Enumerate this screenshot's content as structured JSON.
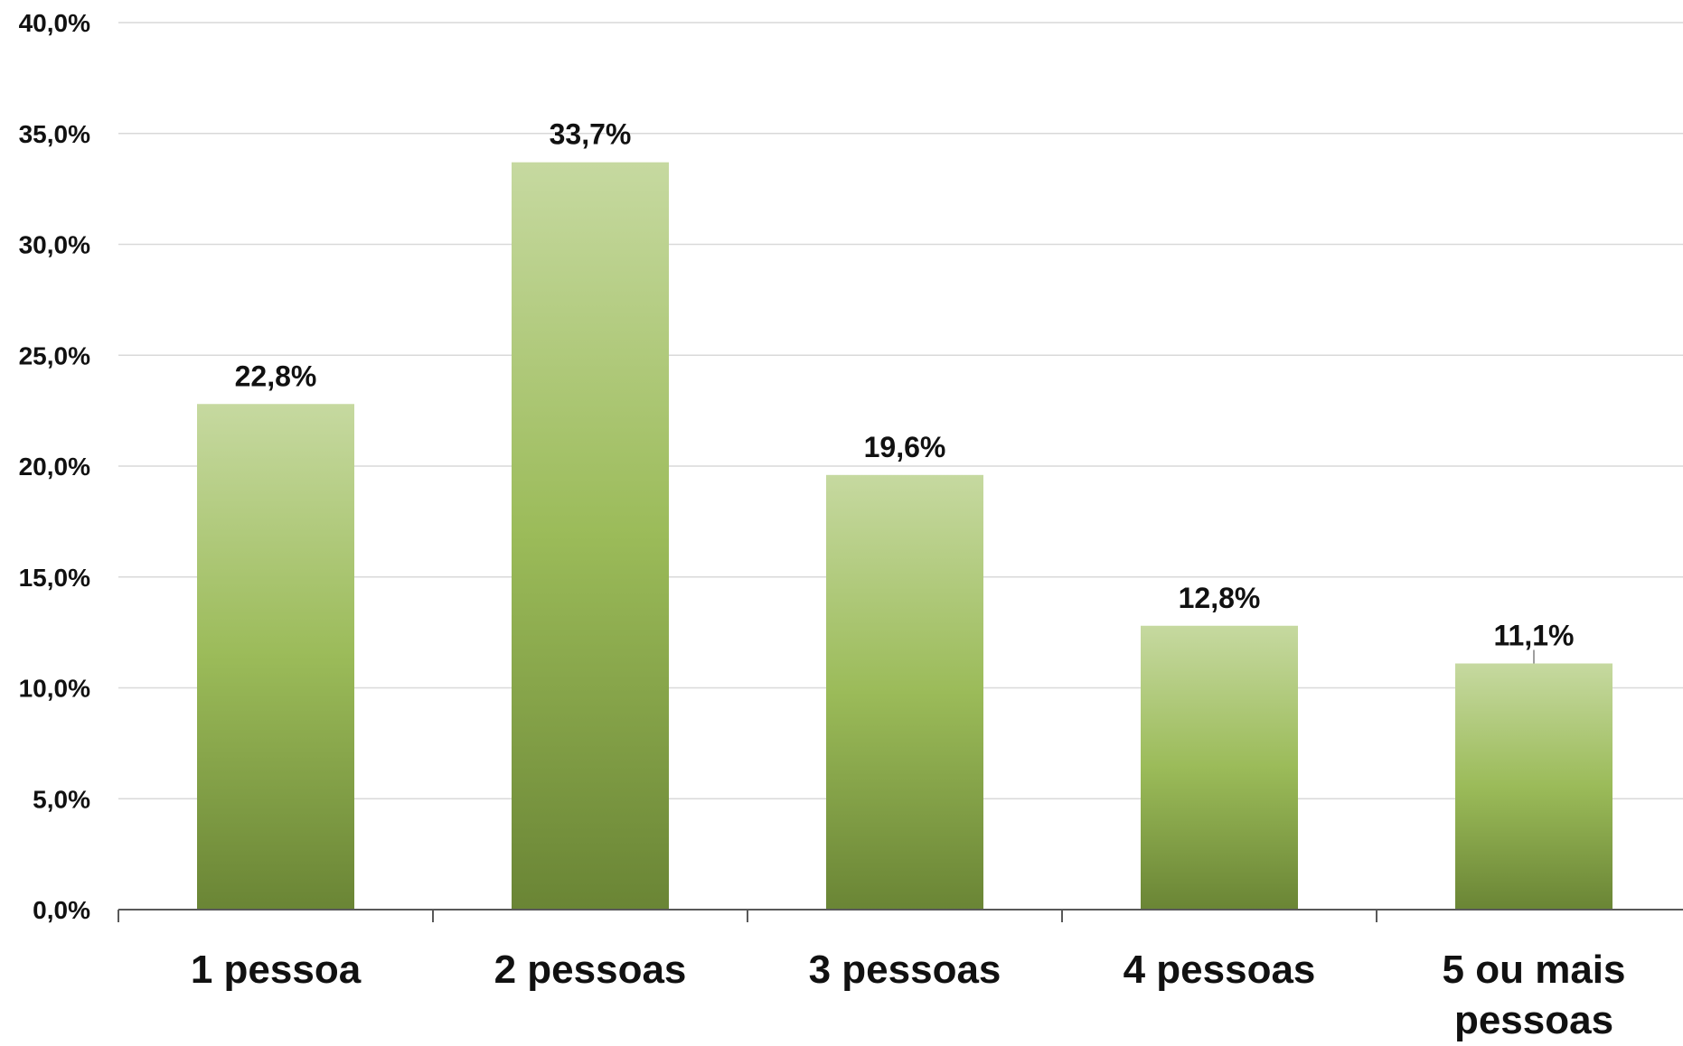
{
  "chart_data": {
    "type": "bar",
    "categories": [
      "1 pessoa",
      "2 pessoas",
      "3 pessoas",
      "4 pessoas",
      "5 ou mais pessoas"
    ],
    "category_lines": [
      [
        "1 pessoa"
      ],
      [
        "2 pessoas"
      ],
      [
        "3 pessoas"
      ],
      [
        "4 pessoas"
      ],
      [
        "5 ou mais",
        "pessoas"
      ]
    ],
    "values": [
      22.8,
      33.7,
      19.6,
      12.8,
      11.1
    ],
    "data_labels": [
      "22,8%",
      "33,7%",
      "19,6%",
      "12,8%",
      "11,1%"
    ],
    "y_ticks": [
      0,
      5,
      10,
      15,
      20,
      25,
      30,
      35,
      40
    ],
    "y_tick_labels": [
      "0,0%",
      "5,0%",
      "10,0%",
      "15,0%",
      "20,0%",
      "25,0%",
      "30,0%",
      "35,0%",
      "40,0%"
    ],
    "ylim": [
      0,
      40
    ],
    "title": "",
    "xlabel": "",
    "ylabel": "",
    "grid": true,
    "legend": "none",
    "colors": {
      "bar_top": "#c6d9a0",
      "bar_mid": "#9bbb59",
      "bar_bottom": "#6a8535",
      "grid": "#d9d9d9",
      "axis": "#595959",
      "text": "#111111"
    }
  }
}
